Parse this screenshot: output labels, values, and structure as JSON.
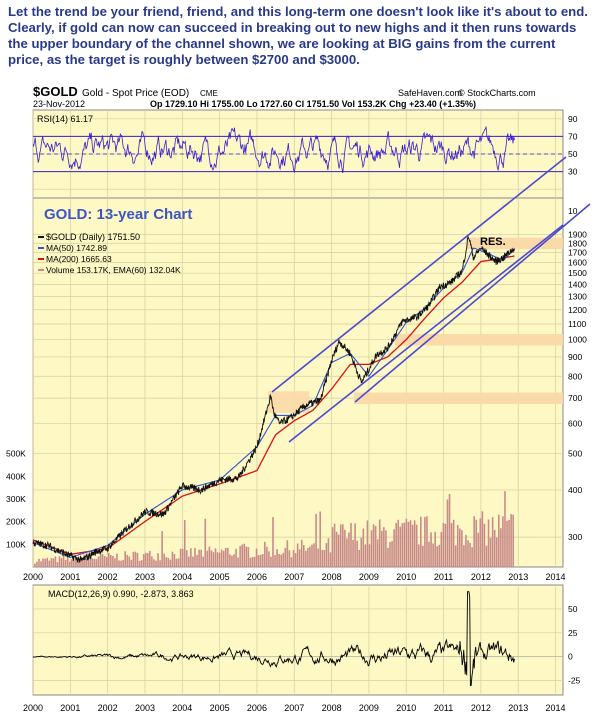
{
  "caption": "Let the trend be your friend, friend, and this long-term one doesn't look like it's about to end. Clearly, if gold can now can succeed  in breaking out to new highs and it then runs towards the upper boundary of the channel shown, we are looking at BIG gains from the current price, as the target is roughly between $2700 and $3000.",
  "header": {
    "symbol": "$GOLD",
    "name": "Gold - Spot Price (EOD)",
    "exchange": "CME",
    "site": "SafeHaven.com",
    "copyright": "© StockCharts.com",
    "date": "23-Nov-2012",
    "quote": "Op 1729.10  Hi 1755.00  Lo 1727.60  Cl 1751.50  Vol 153.2K  Chg +23.40 (+1.35%)"
  },
  "colors": {
    "panel_bg": "#fdf8c4",
    "grid": "#d4cfa0",
    "rsi_line": "#3a1fcf",
    "price": "#111111",
    "ma50": "#3355cc",
    "ma200": "#dd1111",
    "volume": "#c98a8a",
    "channel": "#4a4ad0",
    "band": "#fbd8a8",
    "title_blue": "#3c56c8"
  },
  "chart_data": [
    {
      "type": "line",
      "panel": "rsi",
      "label": "RSI(14) 61.17",
      "ylim": [
        0,
        100
      ],
      "levels": [
        70,
        30
      ],
      "tick_labels": [
        "90",
        "70",
        "50",
        "30",
        "10"
      ]
    },
    {
      "type": "line",
      "panel": "price",
      "title": "GOLD: 13-year Chart",
      "scale": "log",
      "ylim": [
        250,
        2000
      ],
      "x_ticks": [
        "2000",
        "2001",
        "2002",
        "2003",
        "2004",
        "2005",
        "2006",
        "2007",
        "2008",
        "2009",
        "2010",
        "2011",
        "2012",
        "2013",
        "2014"
      ],
      "y_ticks": [
        "1900",
        "1800",
        "1700",
        "1600",
        "1500",
        "1400",
        "1300",
        "1200",
        "1100",
        "1000",
        "900",
        "800",
        "700",
        "600",
        "500",
        "400",
        "300"
      ],
      "volume_ticks": [
        "500K",
        "400K",
        "300K",
        "200K",
        "100K"
      ],
      "legend": [
        "$GOLD (Daily) 1751.50",
        "MA(50) 1742.89",
        "MA(200) 1665.63",
        "Volume 153.17K, EMA(60) 132.04K"
      ],
      "annotations": [
        "RES."
      ],
      "resistance_bands": [
        1800,
        1000,
        700
      ],
      "series": [
        {
          "name": "$GOLD (Daily)",
          "x": [
            2000.0,
            2000.4,
            2000.9,
            2001.3,
            2001.7,
            2002.0,
            2002.5,
            2003.0,
            2003.5,
            2004.0,
            2004.5,
            2005.0,
            2005.5,
            2006.0,
            2006.37,
            2006.45,
            2006.6,
            2006.9,
            2007.3,
            2007.7,
            2008.0,
            2008.2,
            2008.5,
            2008.8,
            2009.2,
            2009.5,
            2009.9,
            2010.3,
            2010.6,
            2010.9,
            2011.2,
            2011.5,
            2011.67,
            2011.8,
            2012.0,
            2012.4,
            2012.6,
            2012.9
          ],
          "y": [
            290,
            285,
            270,
            260,
            275,
            280,
            315,
            350,
            345,
            410,
            400,
            425,
            430,
            520,
            710,
            640,
            600,
            620,
            670,
            690,
            880,
            990,
            920,
            770,
            910,
            950,
            1120,
            1150,
            1230,
            1380,
            1420,
            1520,
            1890,
            1650,
            1750,
            1610,
            1650,
            1750
          ]
        },
        {
          "name": "MA(50)",
          "x": [
            2000.0,
            2001.0,
            2002.0,
            2003.0,
            2004.0,
            2005.0,
            2006.0,
            2006.5,
            2007.0,
            2007.5,
            2008.0,
            2008.5,
            2009.0,
            2009.5,
            2010.0,
            2010.5,
            2011.0,
            2011.5,
            2011.8,
            2012.2,
            2012.6,
            2012.9
          ],
          "y": [
            290,
            265,
            285,
            345,
            400,
            425,
            520,
            630,
            630,
            670,
            870,
            920,
            800,
            940,
            1110,
            1210,
            1370,
            1510,
            1750,
            1690,
            1620,
            1743
          ]
        },
        {
          "name": "MA(200)",
          "x": [
            2000.0,
            2001.0,
            2002.0,
            2003.0,
            2004.0,
            2005.0,
            2006.0,
            2006.5,
            2007.0,
            2007.5,
            2008.0,
            2008.5,
            2009.0,
            2009.5,
            2010.0,
            2010.5,
            2011.0,
            2011.5,
            2012.0,
            2012.5,
            2012.9
          ],
          "y": [
            295,
            270,
            280,
            330,
            385,
            415,
            450,
            560,
            610,
            650,
            740,
            860,
            860,
            900,
            1000,
            1140,
            1290,
            1420,
            1610,
            1640,
            1666
          ]
        }
      ]
    },
    {
      "type": "line",
      "panel": "macd",
      "label": "MACD(12,26,9) 0.990, -2.873, 3.863",
      "ylim": [
        -40,
        75
      ],
      "y_ticks": [
        "50",
        "25",
        "0",
        "-25"
      ],
      "x_ticks": [
        "2000",
        "2001",
        "2002",
        "2003",
        "2004",
        "2005",
        "2006",
        "2007",
        "2008",
        "2009",
        "2010",
        "2011",
        "2012",
        "2013",
        "2014"
      ]
    }
  ]
}
